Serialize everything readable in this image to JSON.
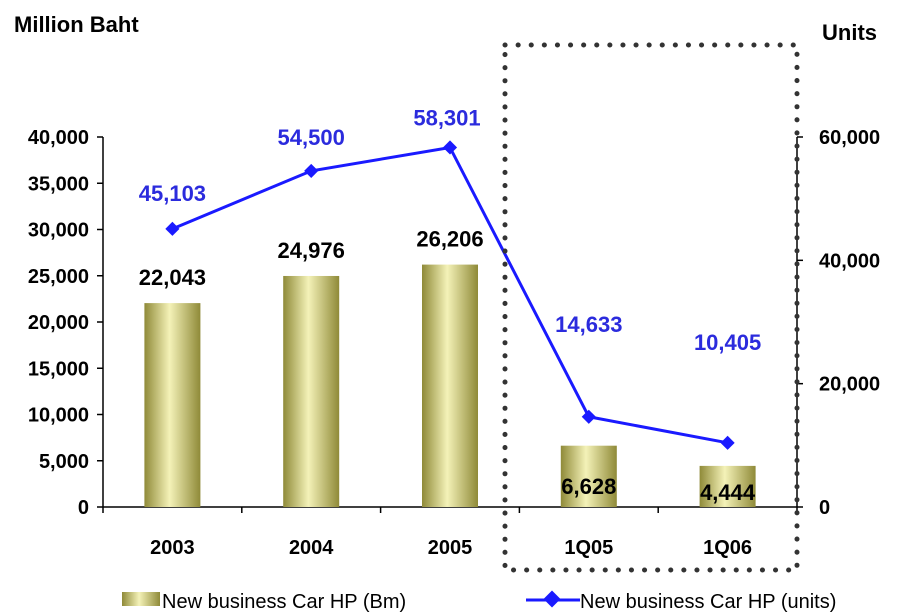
{
  "chart_data": {
    "type": "bar",
    "categories": [
      "2003",
      "2004",
      "2005",
      "1Q05",
      "1Q06"
    ],
    "y_left_label": "Million Baht",
    "y_right_label": "Units",
    "y_left_lim": [
      0,
      40000
    ],
    "y_left_ticks": [
      "0",
      "5,000",
      "10,000",
      "15,000",
      "20,000",
      "25,000",
      "30,000",
      "35,000",
      "40,000"
    ],
    "y_left_tick_values": [
      0,
      5000,
      10000,
      15000,
      20000,
      25000,
      30000,
      35000,
      40000
    ],
    "y_right_lim": [
      0,
      60000
    ],
    "y_right_ticks": [
      "0",
      "20,000",
      "40,000",
      "60,000"
    ],
    "y_right_tick_values": [
      0,
      20000,
      40000,
      60000
    ],
    "series": [
      {
        "name": "New business Car HP (Bm)",
        "type": "bar",
        "axis": "left",
        "values": [
          22043,
          24976,
          26206,
          6628,
          4444
        ],
        "labels": [
          "22,043",
          "24,976",
          "26,206",
          "6,628",
          "4,444"
        ]
      },
      {
        "name": "New business Car HP (units)",
        "type": "line",
        "axis": "right",
        "values": [
          45103,
          54500,
          58301,
          14633,
          10405
        ],
        "labels": [
          "45,103",
          "54,500",
          "58,301",
          "14,633",
          "10,405"
        ]
      }
    ],
    "highlight_categories": [
      "1Q05",
      "1Q06"
    ],
    "grid": false,
    "legend_position": "bottom"
  },
  "colors": {
    "bar_light": "#f4f2b8",
    "bar_mid": "#d6d27a",
    "bar_dark": "#8f8a38",
    "line": "#1a1aff",
    "line_label": "#2b2bdd",
    "axis": "#000000",
    "highlight_box": "#333333"
  }
}
